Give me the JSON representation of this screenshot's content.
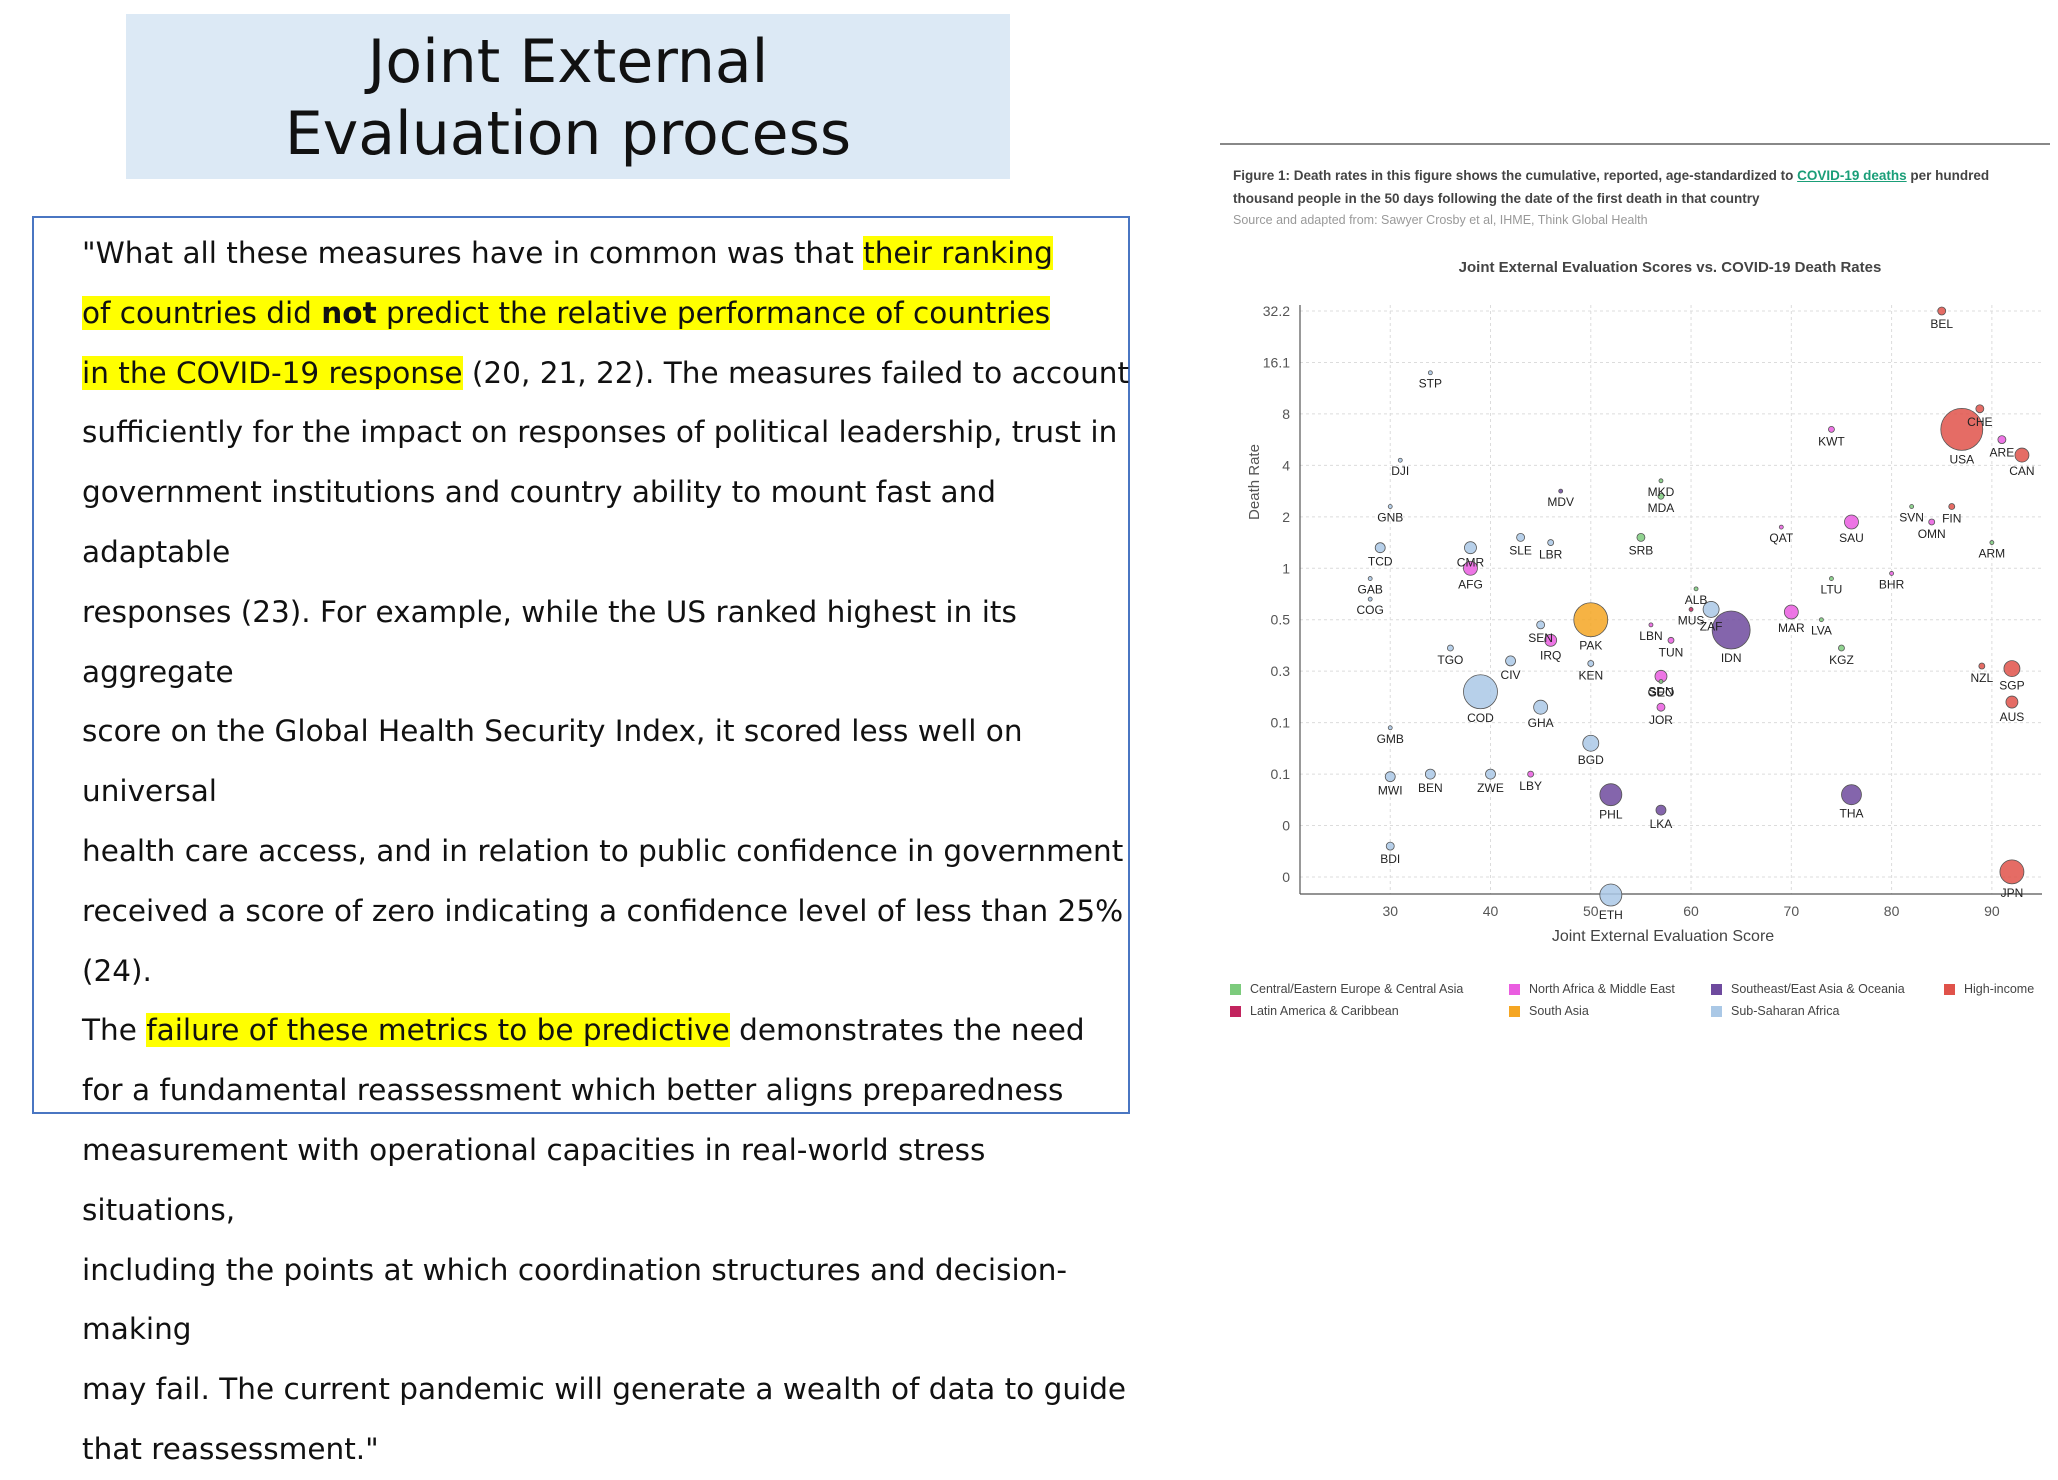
{
  "slide": {
    "title_line1": "Joint External",
    "title_line2": "Evaluation process"
  },
  "quote": {
    "segments": [
      {
        "text": "\"What all these measures have in common was that ",
        "hl": false,
        "bold": false
      },
      {
        "text": "their ranking",
        "hl": true,
        "bold": false
      },
      {
        "br": true
      },
      {
        "text": "of countries did ",
        "hl": true,
        "bold": false
      },
      {
        "text": "not",
        "hl": true,
        "bold": true
      },
      {
        "text": " predict the relative performance of countries",
        "hl": true,
        "bold": false
      },
      {
        "br": true
      },
      {
        "text": "in the COVID-19 response",
        "hl": true,
        "bold": false
      },
      {
        "text": " (20, 21, 22). The measures failed to account",
        "hl": false,
        "bold": false
      },
      {
        "br": true
      },
      {
        "text": "sufficiently for the impact on responses of political leadership, trust in",
        "hl": false,
        "bold": false
      },
      {
        "br": true
      },
      {
        "text": "government institutions and country ability to mount fast and adaptable",
        "hl": false,
        "bold": false
      },
      {
        "br": true
      },
      {
        "text": "responses (23). For example, while the US ranked highest in its aggregate",
        "hl": false,
        "bold": false
      },
      {
        "br": true
      },
      {
        "text": "score on the Global Health Security Index, it scored less well on universal",
        "hl": false,
        "bold": false
      },
      {
        "br": true
      },
      {
        "text": "health care access, and in relation to public confidence in government",
        "hl": false,
        "bold": false
      },
      {
        "br": true
      },
      {
        "text": "received a score of zero indicating a confidence level of less than 25% (24).",
        "hl": false,
        "bold": false
      },
      {
        "br": true
      },
      {
        "text": "The ",
        "hl": false,
        "bold": false
      },
      {
        "text": "failure of these metrics to be predictive",
        "hl": true,
        "bold": false
      },
      {
        "text": " demonstrates the need",
        "hl": false,
        "bold": false
      },
      {
        "br": true
      },
      {
        "text": "for a fundamental reassessment which better aligns preparedness",
        "hl": false,
        "bold": false
      },
      {
        "br": true
      },
      {
        "text": "measurement with operational capacities in real-world stress situations,",
        "hl": false,
        "bold": false
      },
      {
        "br": true
      },
      {
        "text": "including the points at which coordination structures and decision-making",
        "hl": false,
        "bold": false
      },
      {
        "br": true
      },
      {
        "text": "may fail. The current pandemic will generate a wealth of data to guide",
        "hl": false,
        "bold": false
      },
      {
        "br": true
      },
      {
        "text": "that reassessment.\"",
        "hl": false,
        "bold": false
      }
    ]
  },
  "figure": {
    "caption_part1": "Figure 1: Death rates in this figure shows the cumulative, reported, age-standardized to ",
    "caption_link": "COVID-19 deaths",
    "caption_part2": " per hundred thousand people in the 50 days following the date of the first death in that country",
    "source": "Source and adapted from: Sawyer Crosby et al, IHME, Think Global Health"
  },
  "chart_data": {
    "type": "scatter",
    "title": "Joint External Evaluation Scores vs. COVID-19 Death Rates",
    "xlabel": "Joint External Evaluation Score",
    "ylabel": "Death Rate",
    "xlim": [
      21,
      95
    ],
    "x_ticks": [
      30,
      40,
      50,
      60,
      70,
      80,
      90
    ],
    "y_tick_labels": [
      "0",
      "0",
      "0.1",
      "0.1",
      "0.3",
      "0.5",
      "1",
      "2",
      "4",
      "8",
      "16.1",
      "32.2"
    ],
    "y_scale": "ordinal ladder of printed tick labels; point y values are read in tick-index units (0 = lowest tick)",
    "grid": true,
    "region_colors": {
      "Central/Eastern Europe & Central Asia": "#7ccb7c",
      "North Africa & Middle East": "#ea5de0",
      "Southeast/East Asia & Oceania": "#6e4a9e",
      "High-income": "#e0524a",
      "Latin America & Caribbean": "#c2245e",
      "South Asia": "#f5a623",
      "Sub-Saharan Africa": "#aac8e6"
    },
    "legend": [
      {
        "label": "Central/Eastern Europe & Central Asia",
        "color": "#7ccb7c"
      },
      {
        "label": "North Africa & Middle East",
        "color": "#ea5de0"
      },
      {
        "label": "Southeast/East Asia & Oceania",
        "color": "#6e4a9e"
      },
      {
        "label": "High-income",
        "color": "#e0524a"
      },
      {
        "label": "Latin America & Caribbean",
        "color": "#c2245e"
      },
      {
        "label": "South Asia",
        "color": "#f5a623"
      },
      {
        "label": "Sub-Saharan Africa",
        "color": "#aac8e6"
      }
    ],
    "points": [
      {
        "label": "BEL",
        "x": 85,
        "y": 11.0,
        "region": "High-income",
        "size": 4
      },
      {
        "label": "USA",
        "x": 87,
        "y": 8.7,
        "region": "High-income",
        "size": 21
      },
      {
        "label": "CHE",
        "x": 88.8,
        "y": 9.1,
        "region": "High-income",
        "size": 4
      },
      {
        "label": "ARE",
        "x": 91,
        "y": 8.5,
        "region": "North Africa & Middle East",
        "size": 4
      },
      {
        "label": "CAN",
        "x": 93,
        "y": 8.2,
        "region": "High-income",
        "size": 7
      },
      {
        "label": "KWT",
        "x": 74,
        "y": 8.7,
        "region": "North Africa & Middle East",
        "size": 3
      },
      {
        "label": "STP",
        "x": 34,
        "y": 9.8,
        "region": "Sub-Saharan Africa",
        "size": 2
      },
      {
        "label": "DJI",
        "x": 31,
        "y": 8.1,
        "region": "Sub-Saharan Africa",
        "size": 2
      },
      {
        "label": "MKD",
        "x": 57,
        "y": 7.7,
        "region": "Central/Eastern Europe & Central Asia",
        "size": 2
      },
      {
        "label": "MDV",
        "x": 47,
        "y": 7.5,
        "region": "Southeast/East Asia & Oceania",
        "size": 2
      },
      {
        "label": "MDA",
        "x": 57,
        "y": 7.4,
        "region": "Central/Eastern Europe & Central Asia",
        "size": 3
      },
      {
        "label": "GNB",
        "x": 30,
        "y": 7.2,
        "region": "Sub-Saharan Africa",
        "size": 2
      },
      {
        "label": "SVN",
        "x": 82,
        "y": 7.2,
        "region": "Central/Eastern Europe & Central Asia",
        "size": 2
      },
      {
        "label": "FIN",
        "x": 86,
        "y": 7.2,
        "region": "High-income",
        "size": 3
      },
      {
        "label": "SAU",
        "x": 76,
        "y": 6.9,
        "region": "North Africa & Middle East",
        "size": 7
      },
      {
        "label": "OMN",
        "x": 84,
        "y": 6.9,
        "region": "North Africa & Middle East",
        "size": 3
      },
      {
        "label": "QAT",
        "x": 69,
        "y": 6.8,
        "region": "North Africa & Middle East",
        "size": 2
      },
      {
        "label": "SLE",
        "x": 43,
        "y": 6.6,
        "region": "Sub-Saharan Africa",
        "size": 4
      },
      {
        "label": "LBR",
        "x": 46,
        "y": 6.5,
        "region": "Sub-Saharan Africa",
        "size": 3
      },
      {
        "label": "SRB",
        "x": 55,
        "y": 6.6,
        "region": "Central/Eastern Europe & Central Asia",
        "size": 4
      },
      {
        "label": "ARM",
        "x": 90,
        "y": 6.5,
        "region": "Central/Eastern Europe & Central Asia",
        "size": 2
      },
      {
        "label": "CMR",
        "x": 38,
        "y": 6.4,
        "region": "Sub-Saharan Africa",
        "size": 6
      },
      {
        "label": "TCD",
        "x": 29,
        "y": 6.4,
        "region": "Sub-Saharan Africa",
        "size": 5
      },
      {
        "label": "AFG",
        "x": 38,
        "y": 6.0,
        "region": "North Africa & Middle East",
        "size": 7
      },
      {
        "label": "LTU",
        "x": 74,
        "y": 5.8,
        "region": "Central/Eastern Europe & Central Asia",
        "size": 2
      },
      {
        "label": "BHR",
        "x": 80,
        "y": 5.9,
        "region": "North Africa & Middle East",
        "size": 2
      },
      {
        "label": "GAB",
        "x": 28,
        "y": 5.8,
        "region": "Sub-Saharan Africa",
        "size": 2
      },
      {
        "label": "ALB",
        "x": 60.5,
        "y": 5.6,
        "region": "Central/Eastern Europe & Central Asia",
        "size": 2
      },
      {
        "label": "PAK",
        "x": 50,
        "y": 5.0,
        "region": "South Asia",
        "size": 17
      },
      {
        "label": "ZAF",
        "x": 62,
        "y": 5.2,
        "region": "Sub-Saharan Africa",
        "size": 8
      },
      {
        "label": "MUS",
        "x": 60,
        "y": 5.2,
        "region": "Latin America & Caribbean",
        "size": 2
      },
      {
        "label": "MAR",
        "x": 70,
        "y": 5.15,
        "region": "North Africa & Middle East",
        "size": 7
      },
      {
        "label": "IDN",
        "x": 64,
        "y": 4.8,
        "region": "Southeast/East Asia & Oceania",
        "size": 19
      },
      {
        "label": "COG",
        "x": 28,
        "y": 5.4,
        "region": "Sub-Saharan Africa",
        "size": 2
      },
      {
        "label": "SEN",
        "x": 45,
        "y": 4.9,
        "region": "Sub-Saharan Africa",
        "size": 4
      },
      {
        "label": "LBN",
        "x": 56,
        "y": 4.9,
        "region": "North Africa & Middle East",
        "size": 2
      },
      {
        "label": "LVA",
        "x": 73,
        "y": 5.0,
        "region": "Central/Eastern Europe & Central Asia",
        "size": 2
      },
      {
        "label": "TUN",
        "x": 58,
        "y": 4.6,
        "region": "North Africa & Middle East",
        "size": 3
      },
      {
        "label": "IRQ",
        "x": 46,
        "y": 4.6,
        "region": "North Africa & Middle East",
        "size": 6
      },
      {
        "label": "CIV",
        "x": 42,
        "y": 4.2,
        "region": "Sub-Saharan Africa",
        "size": 5
      },
      {
        "label": "KGZ",
        "x": 75,
        "y": 4.45,
        "region": "Central/Eastern Europe & Central Asia",
        "size": 3
      },
      {
        "label": "TGO",
        "x": 36,
        "y": 4.45,
        "region": "Sub-Saharan Africa",
        "size": 3
      },
      {
        "label": "KEN",
        "x": 50,
        "y": 4.15,
        "region": "Sub-Saharan Africa",
        "size": 3
      },
      {
        "label": "NZL",
        "x": 89,
        "y": 4.1,
        "region": "High-income",
        "size": 3
      },
      {
        "label": "SGP",
        "x": 92,
        "y": 4.05,
        "region": "High-income",
        "size": 8
      },
      {
        "label": "SDN",
        "x": 57,
        "y": 3.9,
        "region": "North Africa & Middle East",
        "size": 6
      },
      {
        "label": "GEO",
        "x": 57,
        "y": 3.8,
        "region": "Central/Eastern Europe & Central Asia",
        "size": 2
      },
      {
        "label": "COD",
        "x": 39,
        "y": 3.6,
        "region": "Sub-Saharan Africa",
        "size": 17
      },
      {
        "label": "GHA",
        "x": 45,
        "y": 3.3,
        "region": "Sub-Saharan Africa",
        "size": 7
      },
      {
        "label": "JOR",
        "x": 57,
        "y": 3.3,
        "region": "North Africa & Middle East",
        "size": 4
      },
      {
        "label": "AUS",
        "x": 92,
        "y": 3.4,
        "region": "High-income",
        "size": 6
      },
      {
        "label": "GMB",
        "x": 30,
        "y": 2.9,
        "region": "Sub-Saharan Africa",
        "size": 2
      },
      {
        "label": "BGD",
        "x": 50,
        "y": 2.6,
        "region": "Sub-Saharan Africa",
        "size": 8
      },
      {
        "label": "MWI",
        "x": 30,
        "y": 1.95,
        "region": "Sub-Saharan Africa",
        "size": 5
      },
      {
        "label": "BEN",
        "x": 34,
        "y": 2.0,
        "region": "Sub-Saharan Africa",
        "size": 5
      },
      {
        "label": "ZWE",
        "x": 40,
        "y": 2.0,
        "region": "Sub-Saharan Africa",
        "size": 5
      },
      {
        "label": "LBY",
        "x": 44,
        "y": 2.0,
        "region": "North Africa & Middle East",
        "size": 3
      },
      {
        "label": "PHL",
        "x": 52,
        "y": 1.6,
        "region": "Southeast/East Asia & Oceania",
        "size": 11
      },
      {
        "label": "LKA",
        "x": 57,
        "y": 1.3,
        "region": "Southeast/East Asia & Oceania",
        "size": 5
      },
      {
        "label": "THA",
        "x": 76,
        "y": 1.6,
        "region": "Southeast/East Asia & Oceania",
        "size": 10
      },
      {
        "label": "BDI",
        "x": 30,
        "y": 0.6,
        "region": "Sub-Saharan Africa",
        "size": 4
      },
      {
        "label": "JPN",
        "x": 92,
        "y": 0.1,
        "region": "High-income",
        "size": 12
      },
      {
        "label": "ETH",
        "x": 52,
        "y": -0.35,
        "region": "Sub-Saharan Africa",
        "size": 11
      }
    ]
  }
}
